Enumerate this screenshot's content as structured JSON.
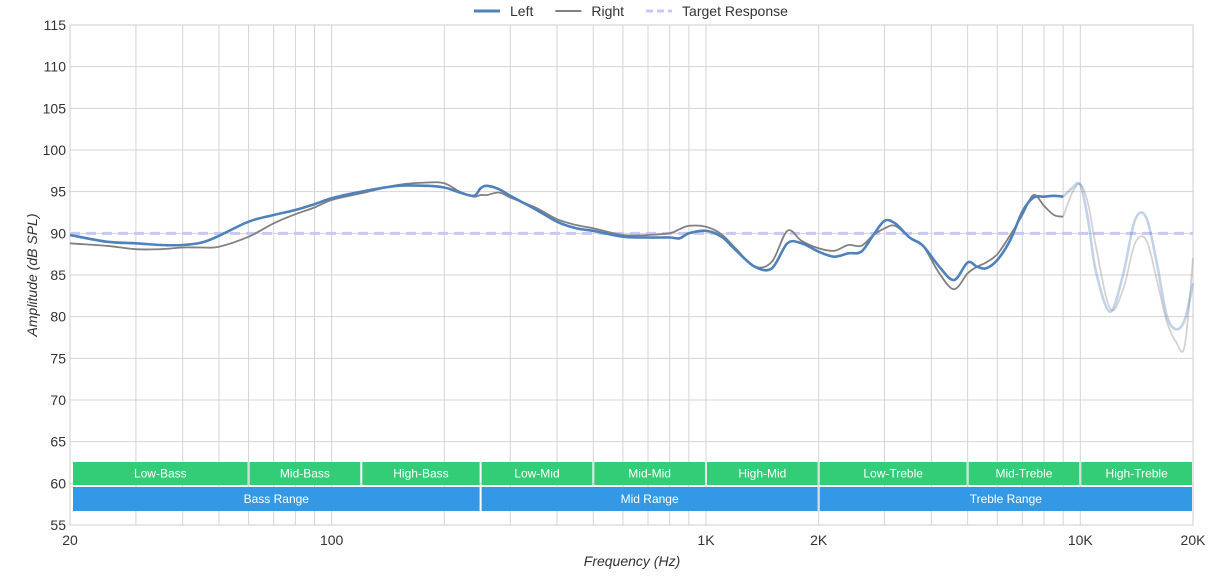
{
  "chart_data": {
    "type": "line",
    "title": "",
    "xlabel": "Frequency (Hz)",
    "ylabel": "Amplitude (dB SPL)",
    "x_scale": "log",
    "xlim": [
      20,
      20000
    ],
    "ylim": [
      55,
      115
    ],
    "grid": true,
    "legend_position": "top-center",
    "x_ticks": [
      {
        "value": 20,
        "label": "20"
      },
      {
        "value": 100,
        "label": "100"
      },
      {
        "value": 1000,
        "label": "1K"
      },
      {
        "value": 2000,
        "label": "2K"
      },
      {
        "value": 10000,
        "label": "10K"
      },
      {
        "value": 20000,
        "label": "20K"
      }
    ],
    "y_ticks": [
      55,
      60,
      65,
      70,
      75,
      80,
      85,
      90,
      95,
      100,
      105,
      110,
      115
    ],
    "colors": {
      "left": "#4f81bd",
      "right": "#808080",
      "target": "#c8c8f4",
      "band_green": "#33cc77",
      "band_blue": "#3399e6",
      "grid": "#d4d4d4"
    },
    "series": [
      {
        "name": "Left",
        "key": "left",
        "x": [
          20,
          25,
          30,
          35,
          40,
          45,
          50,
          60,
          70,
          80,
          90,
          100,
          120,
          150,
          180,
          200,
          220,
          240,
          250,
          260,
          280,
          300,
          350,
          400,
          450,
          500,
          600,
          700,
          800,
          850,
          900,
          1000,
          1100,
          1200,
          1350,
          1500,
          1650,
          1800,
          2000,
          2200,
          2400,
          2600,
          2800,
          3000,
          3200,
          3500,
          3800,
          4200,
          4600,
          5000,
          5300,
          5600,
          6000,
          6500,
          7000,
          7500,
          8000,
          8500,
          9000
        ],
        "y": [
          89.8,
          89.0,
          88.8,
          88.6,
          88.6,
          88.9,
          89.7,
          91.4,
          92.2,
          92.8,
          93.5,
          94.2,
          95.0,
          95.7,
          95.7,
          95.5,
          94.9,
          94.5,
          95.4,
          95.7,
          95.3,
          94.5,
          92.9,
          91.4,
          90.6,
          90.3,
          89.6,
          89.5,
          89.5,
          89.4,
          90.0,
          90.3,
          89.6,
          88.0,
          86.0,
          85.8,
          88.8,
          88.8,
          87.8,
          87.2,
          87.6,
          87.8,
          89.8,
          91.5,
          91.2,
          89.5,
          88.5,
          86.0,
          84.4,
          86.5,
          86.0,
          85.8,
          86.8,
          89.2,
          92.6,
          94.3,
          94.4,
          94.5,
          94.4
        ],
        "faded_x": [
          9000,
          9500,
          10000,
          10500,
          11000,
          12000,
          13000,
          14000,
          15000,
          16000,
          17000,
          18000,
          19000,
          20000
        ],
        "faded_y": [
          94.4,
          95.4,
          95.8,
          91.5,
          85.5,
          80.6,
          85.0,
          91.6,
          91.9,
          86.5,
          80.2,
          78.5,
          79.6,
          84.0
        ]
      },
      {
        "name": "Right",
        "key": "right",
        "x": [
          20,
          25,
          30,
          35,
          40,
          45,
          50,
          60,
          70,
          80,
          90,
          100,
          120,
          150,
          180,
          200,
          220,
          240,
          250,
          260,
          280,
          300,
          350,
          400,
          450,
          500,
          600,
          700,
          800,
          850,
          900,
          1000,
          1100,
          1200,
          1350,
          1500,
          1650,
          1800,
          2000,
          2200,
          2400,
          2600,
          2800,
          3000,
          3200,
          3500,
          3800,
          4200,
          4600,
          5000,
          5300,
          5600,
          6000,
          6500,
          7000,
          7500,
          8000,
          8500,
          9000
        ],
        "y": [
          88.8,
          88.5,
          88.1,
          88.1,
          88.3,
          88.3,
          88.4,
          89.6,
          91.2,
          92.3,
          93.1,
          94.0,
          94.8,
          95.8,
          96.1,
          96.0,
          95.0,
          94.4,
          94.6,
          94.6,
          94.9,
          94.3,
          93.1,
          91.7,
          91.0,
          90.6,
          89.8,
          89.8,
          90.0,
          90.5,
          90.9,
          90.8,
          89.9,
          88.2,
          86.0,
          86.6,
          90.3,
          89.1,
          88.2,
          87.9,
          88.6,
          88.5,
          89.8,
          90.6,
          90.9,
          89.5,
          88.5,
          85.2,
          83.3,
          85.2,
          86.0,
          86.5,
          87.5,
          89.8,
          92.2,
          94.6,
          93.3,
          92.2,
          92.0
        ],
        "faded_x": [
          9000,
          9500,
          10000,
          10500,
          11000,
          12000,
          13000,
          14000,
          15000,
          16000,
          17000,
          18000,
          19000,
          20000
        ],
        "faded_y": [
          92.0,
          94.8,
          95.9,
          93.5,
          88.5,
          81.0,
          83.2,
          88.8,
          89.2,
          84.5,
          79.5,
          77.0,
          76.5,
          87.0
        ]
      },
      {
        "name": "Target Response",
        "key": "target",
        "x": [
          20,
          20000
        ],
        "y": [
          90,
          90
        ]
      }
    ],
    "bands": [
      {
        "label": "Low-Bass",
        "from": 20,
        "to": 60,
        "row": "top"
      },
      {
        "label": "Mid-Bass",
        "from": 60,
        "to": 120,
        "row": "top"
      },
      {
        "label": "High-Bass",
        "from": 120,
        "to": 250,
        "row": "top"
      },
      {
        "label": "Low-Mid",
        "from": 250,
        "to": 500,
        "row": "top"
      },
      {
        "label": "Mid-Mid",
        "from": 500,
        "to": 1000,
        "row": "top"
      },
      {
        "label": "High-Mid",
        "from": 1000,
        "to": 2000,
        "row": "top"
      },
      {
        "label": "Low-Treble",
        "from": 2000,
        "to": 5000,
        "row": "top"
      },
      {
        "label": "Mid-Treble",
        "from": 5000,
        "to": 10000,
        "row": "top"
      },
      {
        "label": "High-Treble",
        "from": 10000,
        "to": 20000,
        "row": "top"
      },
      {
        "label": "Bass Range",
        "from": 20,
        "to": 250,
        "row": "bottom"
      },
      {
        "label": "Mid Range",
        "from": 250,
        "to": 2000,
        "row": "bottom"
      },
      {
        "label": "Treble Range",
        "from": 2000,
        "to": 20000,
        "row": "bottom"
      }
    ]
  }
}
